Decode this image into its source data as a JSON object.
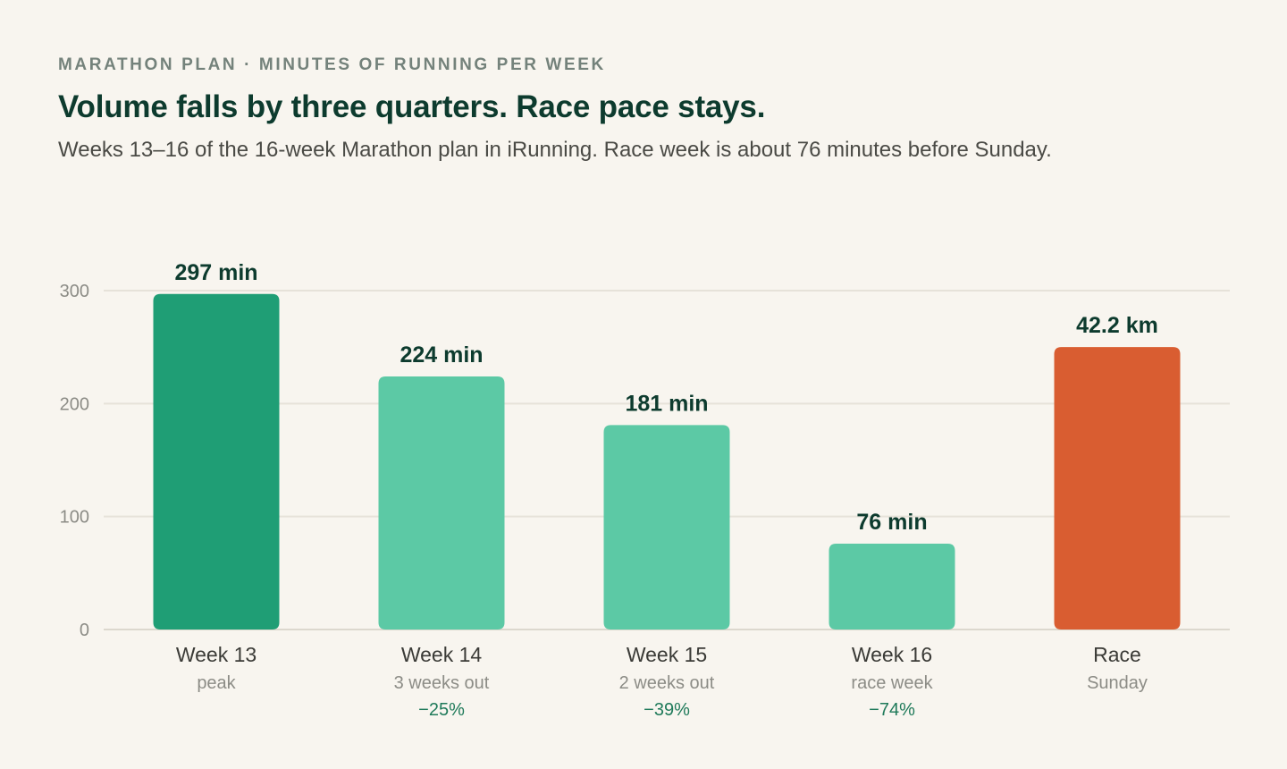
{
  "header": {
    "kicker": "MARATHON PLAN · MINUTES OF RUNNING PER WEEK",
    "title": "Volume falls by three quarters. Race pace stays.",
    "subtitle": "Weeks 13–16 of the 16-week Marathon plan in iRunning. Race week is about 76 minutes before Sunday."
  },
  "chart_data": {
    "type": "bar",
    "ylim": [
      0,
      300
    ],
    "yticks": [
      0,
      100,
      200,
      300
    ],
    "grid": true,
    "categories": [
      "Week 13",
      "Week 14",
      "Week 15",
      "Week 16",
      "Race"
    ],
    "values": [
      297,
      224,
      181,
      76,
      250
    ],
    "value_labels": [
      "297 min",
      "224 min",
      "181 min",
      "76 min",
      "42.2 km"
    ],
    "sublabels": [
      "peak",
      "3 weeks out",
      "2 weeks out",
      "race week",
      "Sunday"
    ],
    "changes": [
      "",
      "−25%",
      "−39%",
      "−74%",
      ""
    ],
    "colors": [
      "#1f9e75",
      "#5cc9a5",
      "#5cc9a5",
      "#5cc9a5",
      "#d95d31"
    ]
  }
}
